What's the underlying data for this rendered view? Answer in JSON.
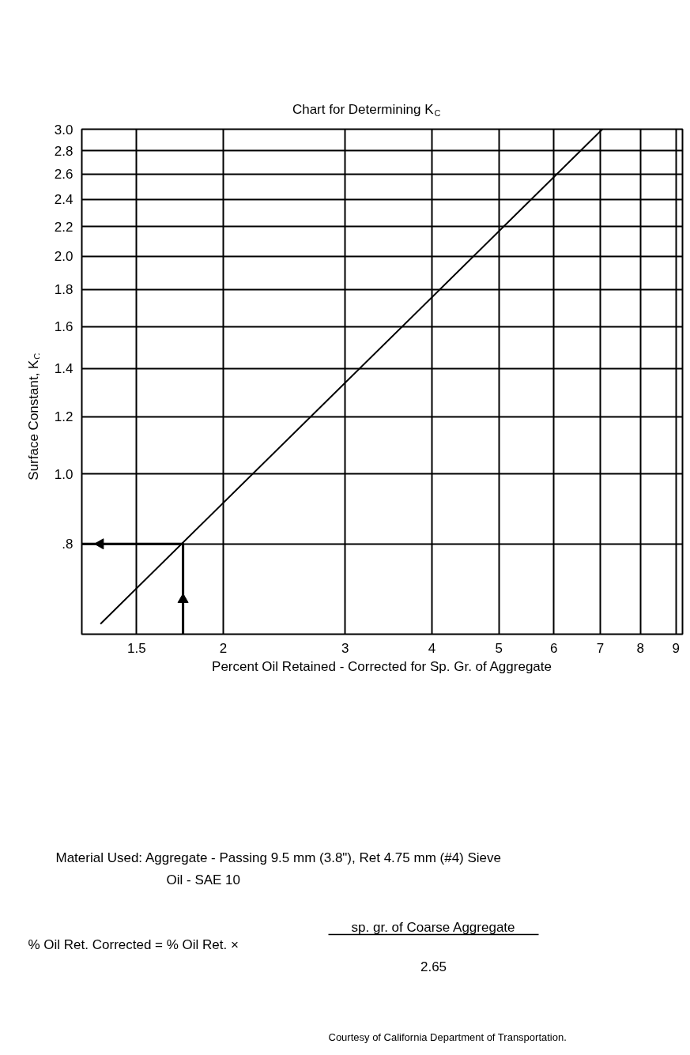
{
  "chart_data": {
    "type": "line",
    "title": "Chart for Determining K$_{C}$",
    "xlabel": "Percent Oil Retained - Corrected for Sp. Gr. of Aggregate",
    "ylabel": "Surface Constant, K$_{C}$",
    "log": "xy",
    "series": [
      {
        "x": [
          1.33,
          7.05
        ],
        "values": [
          0.62,
          3.0
        ],
        "color": "#000000"
      },
      {
        "x": [
          1.75,
          1.75,
          1.75,
          1.33,
          1.25
        ],
        "values": [
          0.6,
          0.67,
          0.8,
          0.8,
          0.8
        ],
        "color": "#000000"
      }
    ],
    "xlim": [
      1.25,
      9.2
    ],
    "ylim": [
      0.6,
      3.0
    ],
    "xticks": [
      1.5,
      2,
      3,
      4,
      5,
      6,
      7,
      8,
      9
    ],
    "yticks": [
      {
        "value": 0.8,
        "label": ".8"
      },
      {
        "value": 1.0,
        "label": "1.0"
      },
      1.2,
      1.4,
      1.6,
      1.8,
      {
        "value": 2.0,
        "label": "2.0"
      },
      2.2,
      2.4,
      2.6,
      2.8,
      {
        "value": 3.0,
        "label": "3.0"
      }
    ],
    "grid": true,
    "annotations": [
      "Material Used: Aggregate - Passing 9.5 mm (3.8\"), Ret 4.75 mm (#4) Sieve",
      "Oil - SAE 10",
      "% Oil Ret. Corrected = % Oil Ret. ×",
      "sp. gr. of Coarse Aggregate",
      "2.65",
      "Courtesy of California Department of Transportation."
    ]
  }
}
